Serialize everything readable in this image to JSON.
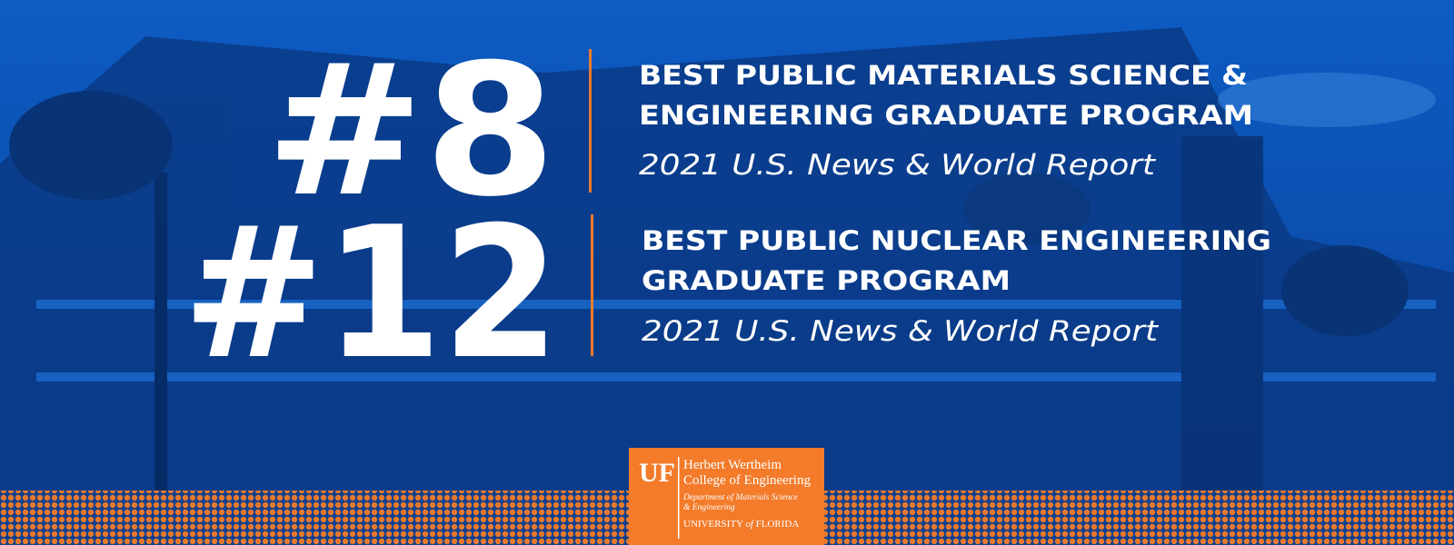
{
  "rankings": [
    {
      "rank": "#8",
      "title_lines": [
        "BEST PUBLIC MATERIALS SCIENCE &",
        "ENGINEERING GRADUATE PROGRAM"
      ],
      "source": "2021 U.S. News & World Report"
    },
    {
      "rank": "#12",
      "title_lines": [
        "BEST PUBLIC NUCLEAR ENGINEERING",
        "GRADUATE PROGRAM"
      ],
      "source": "2021 U.S. News & World Report"
    }
  ],
  "logo": {
    "mark": "UF",
    "college": [
      "Herbert Wertheim",
      "College of Engineering"
    ],
    "department": [
      "Department of Materials Science",
      "& Engineering"
    ],
    "university": [
      "UNIVERSITY",
      "of",
      "FLORIDA"
    ]
  }
}
